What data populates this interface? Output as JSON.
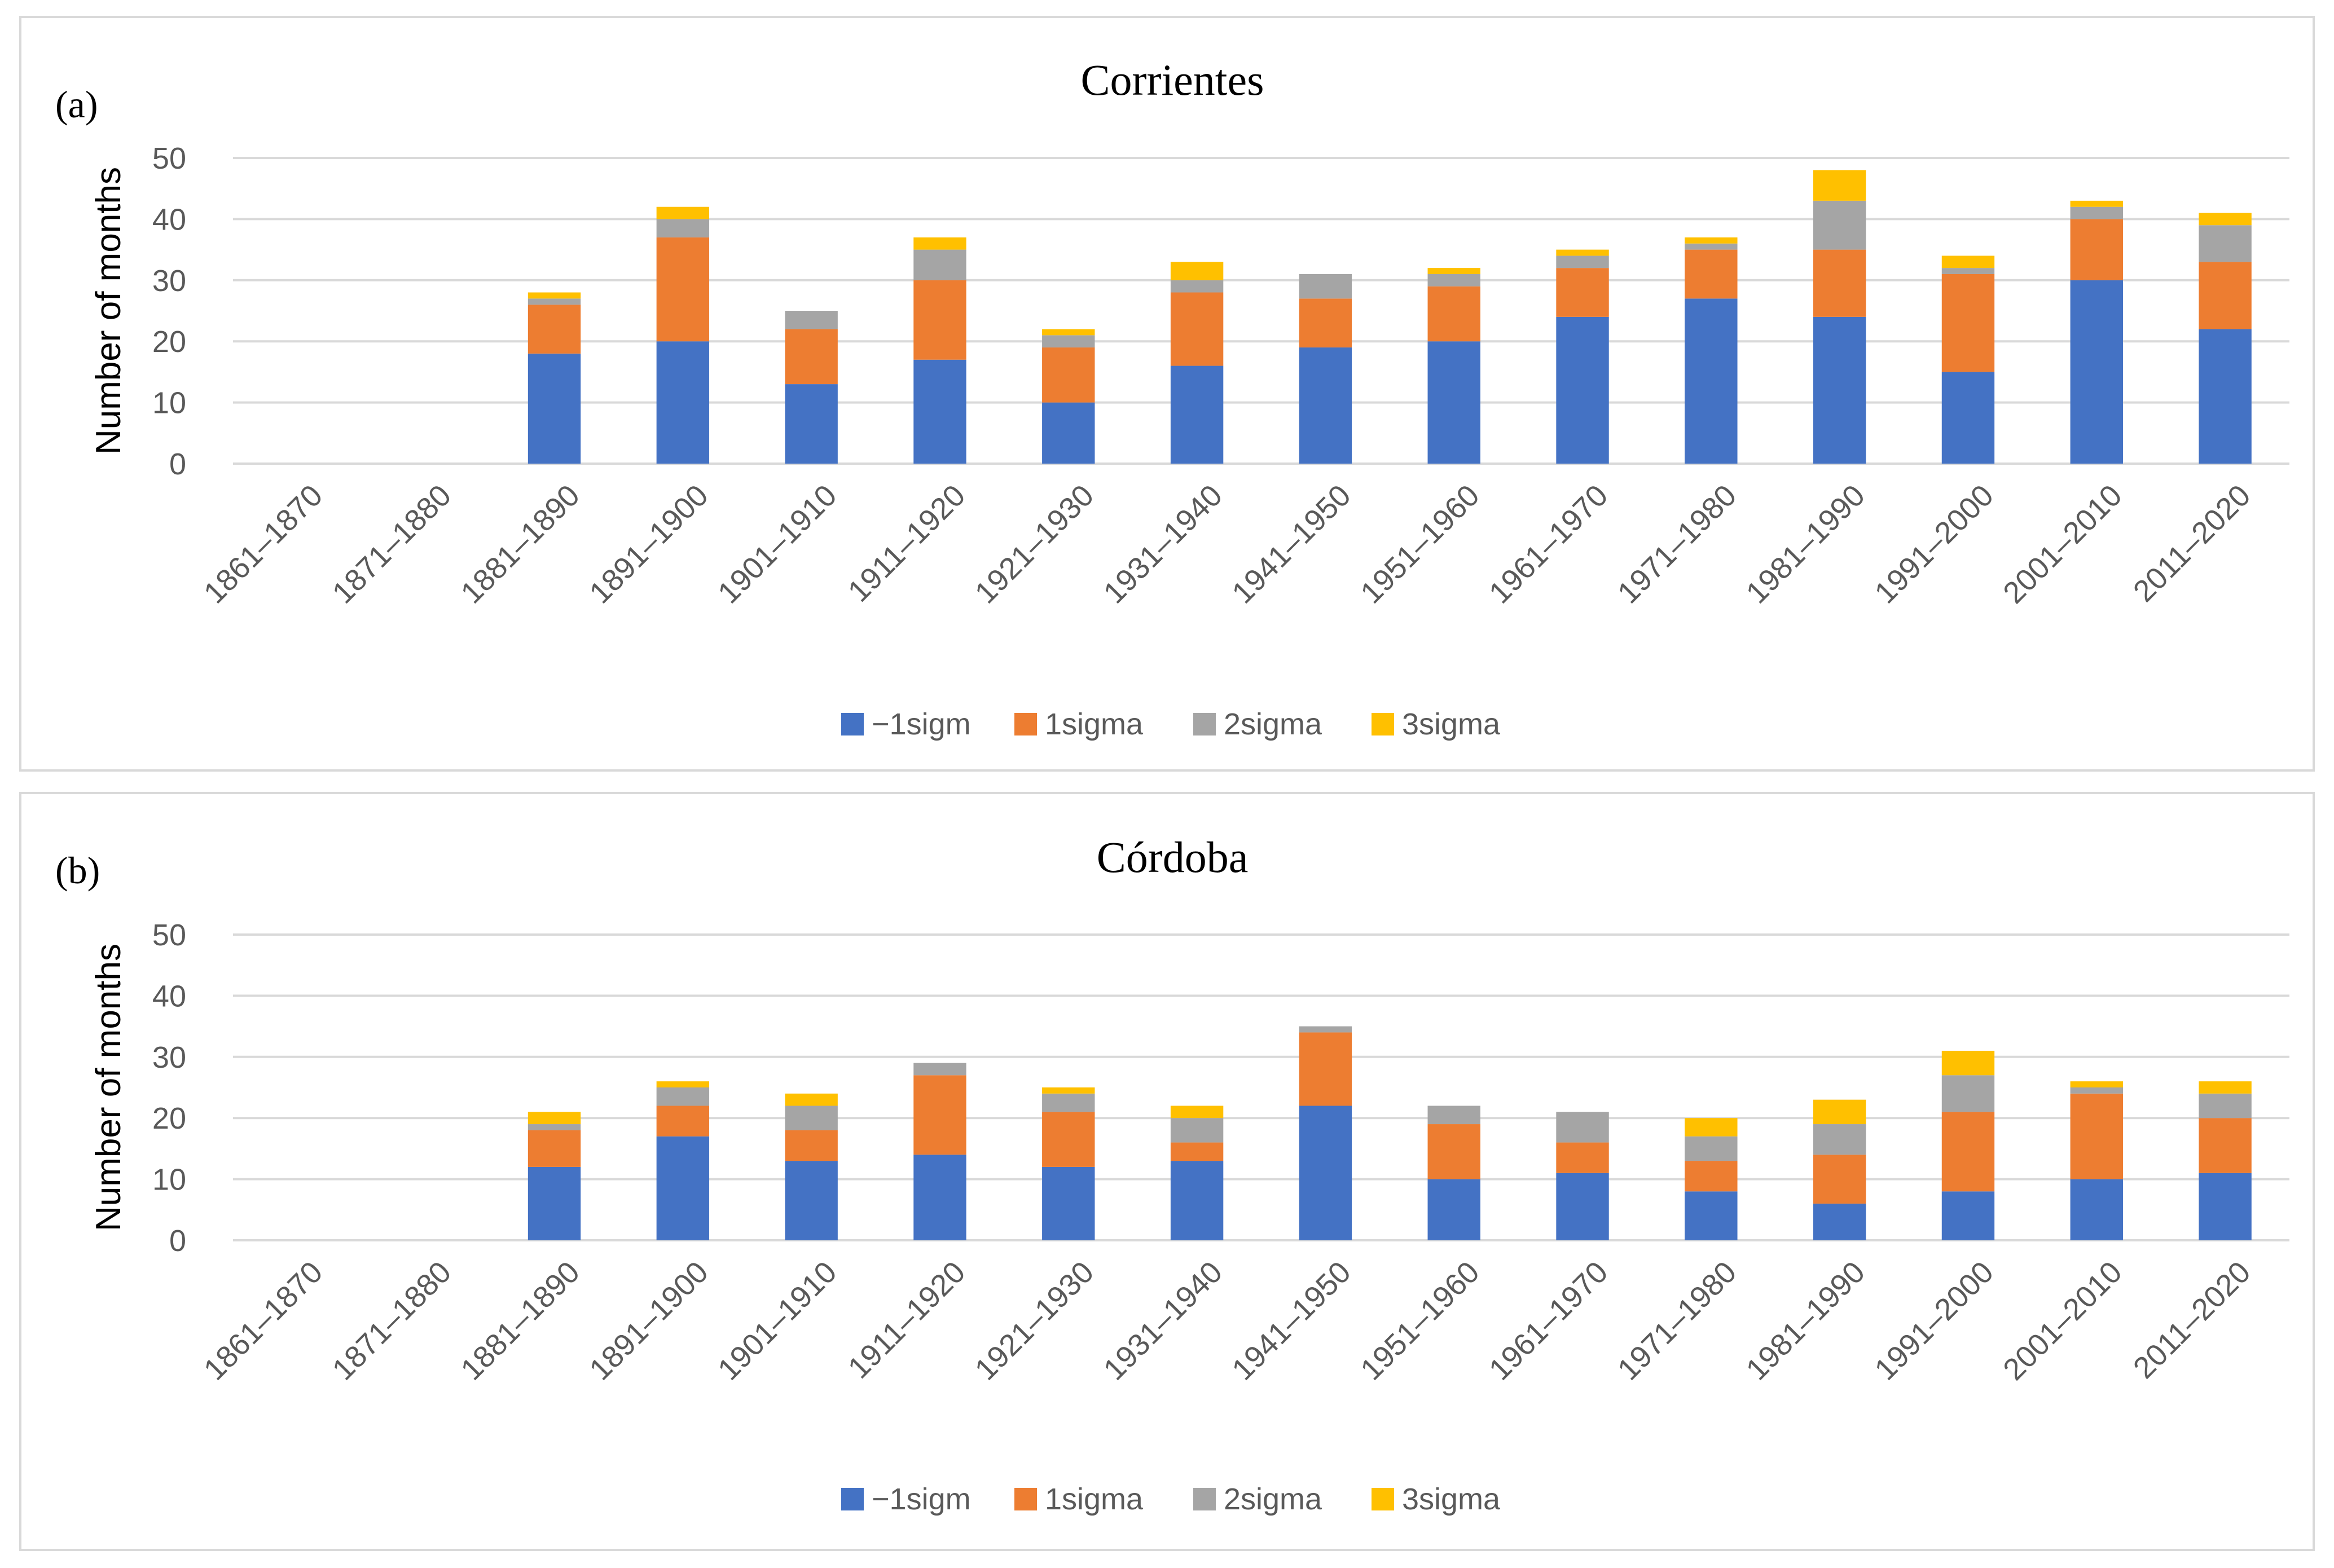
{
  "chart_data": [
    {
      "type": "bar",
      "stacked": true,
      "panel_label": "(a)",
      "title": "Corrientes",
      "xlabel": "",
      "ylabel": "Number of months",
      "ylim": [
        0,
        50
      ],
      "yticks": [
        0,
        10,
        20,
        30,
        40,
        50
      ],
      "grid": true,
      "legend_position": "bottom",
      "categories": [
        "1861–1870",
        "1871–1880",
        "1881–1890",
        "1891–1900",
        "1901–1910",
        "1911–1920",
        "1921–1930",
        "1931–1940",
        "1941–1950",
        "1951–1960",
        "1961–1970",
        "1971–1980",
        "1981–1990",
        "1991–2000",
        "2001–2010",
        "2011–2020"
      ],
      "series": [
        {
          "name": "−1sigm",
          "color": "#4472C4",
          "values": [
            0,
            0,
            18,
            20,
            13,
            17,
            10,
            16,
            19,
            20,
            24,
            27,
            24,
            15,
            30,
            22
          ]
        },
        {
          "name": "1sigma",
          "color": "#ED7D31",
          "values": [
            0,
            0,
            8,
            17,
            9,
            13,
            9,
            12,
            8,
            9,
            8,
            8,
            11,
            16,
            10,
            11
          ]
        },
        {
          "name": "2sigma",
          "color": "#A5A5A5",
          "values": [
            0,
            0,
            1,
            3,
            3,
            5,
            2,
            2,
            4,
            2,
            2,
            1,
            8,
            1,
            2,
            6
          ]
        },
        {
          "name": "3sigma",
          "color": "#FFC000",
          "values": [
            0,
            0,
            1,
            2,
            0,
            2,
            1,
            3,
            0,
            1,
            1,
            1,
            5,
            2,
            1,
            2
          ]
        }
      ]
    },
    {
      "type": "bar",
      "stacked": true,
      "panel_label": "(b)",
      "title": "Córdoba",
      "xlabel": "",
      "ylabel": "Number of months",
      "ylim": [
        0,
        50
      ],
      "yticks": [
        0,
        10,
        20,
        30,
        40,
        50
      ],
      "grid": true,
      "legend_position": "bottom",
      "categories": [
        "1861–1870",
        "1871–1880",
        "1881–1890",
        "1891–1900",
        "1901–1910",
        "1911–1920",
        "1921–1930",
        "1931–1940",
        "1941–1950",
        "1951–1960",
        "1961–1970",
        "1971–1980",
        "1981–1990",
        "1991–2000",
        "2001–2010",
        "2011–2020"
      ],
      "series": [
        {
          "name": "−1sigm",
          "color": "#4472C4",
          "values": [
            0,
            0,
            12,
            17,
            13,
            14,
            12,
            13,
            22,
            10,
            11,
            8,
            6,
            8,
            10,
            11
          ]
        },
        {
          "name": "1sigma",
          "color": "#ED7D31",
          "values": [
            0,
            0,
            6,
            5,
            5,
            13,
            9,
            3,
            12,
            9,
            5,
            5,
            8,
            13,
            14,
            9
          ]
        },
        {
          "name": "2sigma",
          "color": "#A5A5A5",
          "values": [
            0,
            0,
            1,
            3,
            4,
            2,
            3,
            4,
            1,
            3,
            5,
            4,
            5,
            6,
            1,
            4
          ]
        },
        {
          "name": "3sigma",
          "color": "#FFC000",
          "values": [
            0,
            0,
            2,
            1,
            2,
            0,
            1,
            2,
            0,
            0,
            0,
            3,
            4,
            4,
            1,
            2
          ]
        }
      ]
    }
  ]
}
